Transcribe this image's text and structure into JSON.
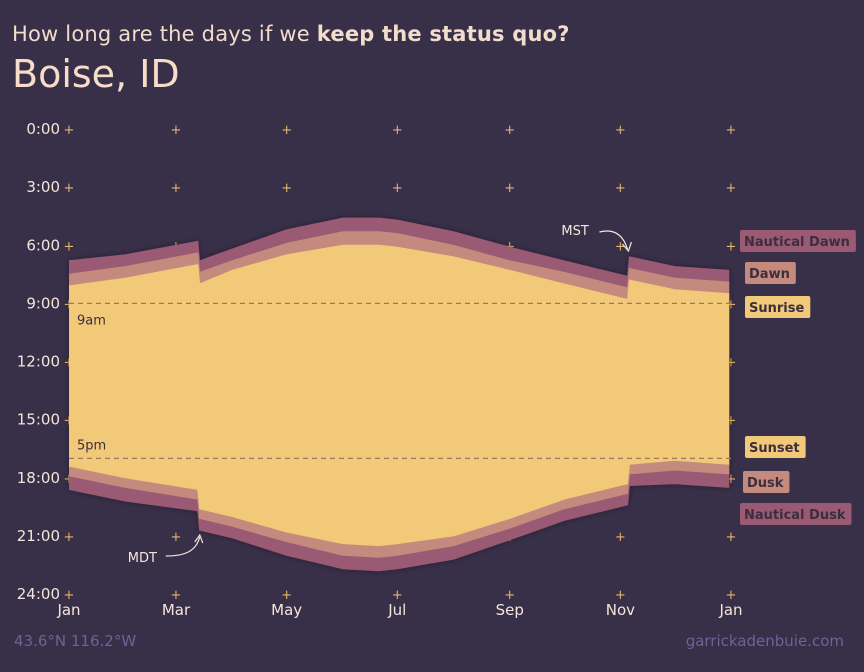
{
  "header": {
    "subtitle_prefix": "How long are the days if we ",
    "subtitle_emphasis": "keep the status quo?",
    "title": "Boise, ID"
  },
  "footer": {
    "coords": "43.6°N 116.2°W",
    "credit": "garrickadenbuie.com"
  },
  "colors": {
    "background": "#382f48",
    "nautical": "#9a5a73",
    "dawn": "#c48a7e",
    "sunrise": "#f2c879",
    "refline": "#9b7a63",
    "plus": "#e8b56b",
    "label_text": "#3b2f3e"
  },
  "chart_data": {
    "type": "area",
    "x": [
      "2022-01-01",
      "2022-02-01",
      "2022-03-13",
      "2022-03-14",
      "2022-04-01",
      "2022-05-01",
      "2022-06-01",
      "2022-06-21",
      "2022-07-01",
      "2022-08-01",
      "2022-09-01",
      "2022-10-01",
      "2022-11-05",
      "2022-11-06",
      "2022-12-01",
      "2022-12-31"
    ],
    "xticks": [
      "Jan",
      "Mar",
      "May",
      "Jul",
      "Sep",
      "Nov",
      "Jan"
    ],
    "xtick_dates": [
      "2022-01-01",
      "2022-03-01",
      "2022-05-01",
      "2022-07-01",
      "2022-09-01",
      "2022-11-01",
      "2023-01-01"
    ],
    "yticks": [
      "0:00",
      "3:00",
      "6:00",
      "9:00",
      "12:00",
      "15:00",
      "18:00",
      "21:00",
      "24:00"
    ],
    "ylim": [
      0,
      24
    ],
    "y_reversed": true,
    "grid": "plus markers at each x and y tick",
    "series": [
      {
        "name": "Nautical Dawn",
        "values": [
          6.8,
          6.5,
          5.8,
          6.8,
          6.2,
          5.2,
          4.6,
          4.6,
          4.7,
          5.3,
          6.1,
          6.8,
          7.6,
          6.6,
          7.1,
          7.3
        ],
        "color": "#9a5a73"
      },
      {
        "name": "Dawn",
        "values": [
          7.5,
          7.1,
          6.4,
          7.4,
          6.8,
          5.9,
          5.3,
          5.3,
          5.4,
          6.0,
          6.8,
          7.4,
          8.2,
          7.2,
          7.7,
          7.9
        ],
        "color": "#c48a7e"
      },
      {
        "name": "Sunrise",
        "values": [
          8.1,
          7.7,
          7.0,
          8.0,
          7.3,
          6.5,
          6.0,
          6.0,
          6.1,
          6.6,
          7.3,
          8.0,
          8.8,
          7.8,
          8.3,
          8.5
        ],
        "color": "#f2c879"
      },
      {
        "name": "Sunset",
        "values": [
          17.4,
          18.0,
          18.6,
          19.6,
          20.0,
          20.8,
          21.4,
          21.5,
          21.4,
          21.0,
          20.1,
          19.1,
          18.3,
          17.3,
          17.1,
          17.3
        ],
        "color": "#f2c879"
      },
      {
        "name": "Dusk",
        "values": [
          17.9,
          18.5,
          19.1,
          20.1,
          20.5,
          21.3,
          22.0,
          22.1,
          22.0,
          21.5,
          20.6,
          19.6,
          18.8,
          17.8,
          17.6,
          17.8
        ],
        "color": "#c48a7e"
      },
      {
        "name": "Nautical Dusk",
        "values": [
          18.6,
          19.2,
          19.7,
          20.7,
          21.1,
          22.0,
          22.7,
          22.8,
          22.7,
          22.2,
          21.2,
          20.2,
          19.4,
          18.4,
          18.3,
          18.5
        ],
        "color": "#9a5a73"
      }
    ],
    "reference_lines": [
      {
        "label": "9am",
        "y": 9
      },
      {
        "label": "5pm",
        "y": 17
      }
    ],
    "annotations": [
      {
        "label": "MST",
        "date": "2022-11-06"
      },
      {
        "label": "MDT",
        "date": "2022-03-13"
      }
    ],
    "legend_position": "right"
  }
}
